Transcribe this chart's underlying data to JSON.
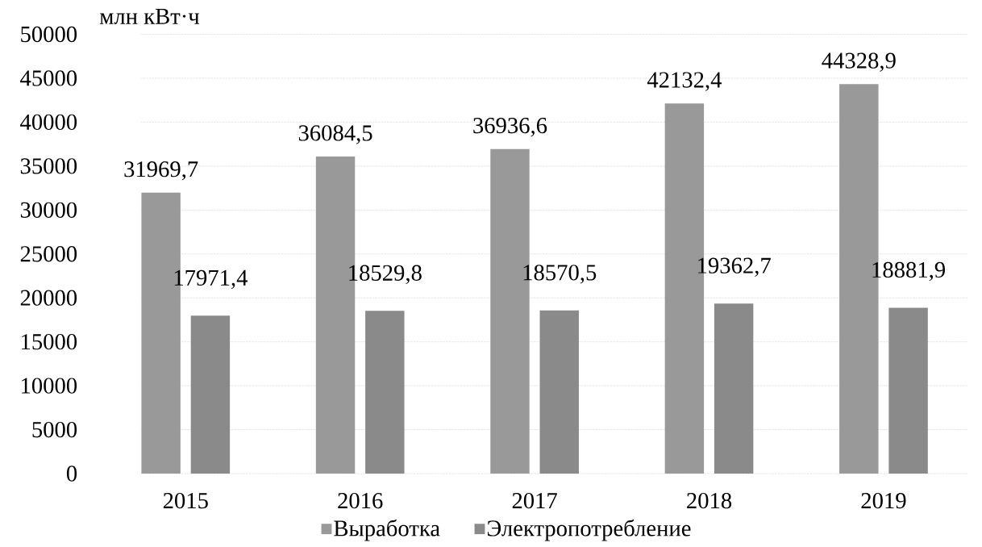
{
  "chart_data": {
    "type": "bar",
    "ylabel": "млн кВт·ч",
    "categories": [
      "2015",
      "2016",
      "2017",
      "2018",
      "2019"
    ],
    "series": [
      {
        "name": "Выработка",
        "color": "#999999",
        "values": [
          31969.7,
          36084.5,
          36936.6,
          42132.4,
          44328.9
        ],
        "value_labels": [
          "31969,7",
          "36084,5",
          "36936,6",
          "42132,4",
          "44328,9"
        ]
      },
      {
        "name": "Электропотребление",
        "color": "#8a8a8a",
        "values": [
          17971.4,
          18529.8,
          18570.5,
          19362.7,
          18881.9
        ],
        "value_labels": [
          "17971,4",
          "18529,8",
          "18570,5",
          "19362,7",
          "18881,9"
        ]
      }
    ],
    "ylim": [
      0,
      50000
    ],
    "yticks": [
      0,
      5000,
      10000,
      15000,
      20000,
      25000,
      30000,
      35000,
      40000,
      45000,
      50000
    ],
    "grid": "y",
    "legend": "bottom"
  }
}
